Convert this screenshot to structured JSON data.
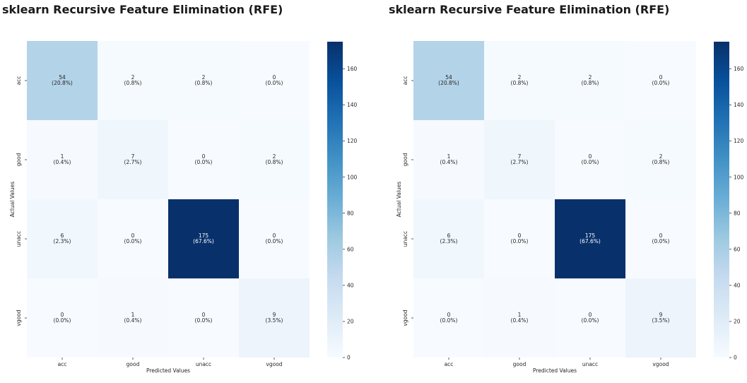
{
  "chart_data": [
    {
      "type": "heatmap",
      "title": "sklearn Recursive Feature Elimination (RFE)",
      "xlabel": "Predicted Values",
      "ylabel": "Actual Values",
      "x_categories": [
        "acc",
        "good",
        "unacc",
        "vgood"
      ],
      "y_categories": [
        "acc",
        "good",
        "unacc",
        "vgood"
      ],
      "values": [
        [
          54,
          2,
          2,
          0
        ],
        [
          1,
          7,
          0,
          2
        ],
        [
          6,
          0,
          175,
          0
        ],
        [
          0,
          1,
          0,
          9
        ]
      ],
      "annotations": [
        [
          "(20.8%)",
          "(0.8%)",
          "(0.8%)",
          "(0.0%)"
        ],
        [
          "(0.4%)",
          "(2.7%)",
          "(0.0%)",
          "(0.8%)"
        ],
        [
          "(2.3%)",
          "(0.0%)",
          "(67.6%)",
          "(0.0%)"
        ],
        [
          "(0.0%)",
          "(0.4%)",
          "(0.0%)",
          "(3.5%)"
        ]
      ],
      "colorbar_ticks": [
        0,
        20,
        40,
        60,
        80,
        100,
        120,
        140,
        160
      ],
      "colorbar_range": [
        0,
        175
      ],
      "colormap": "Blues",
      "grid": false
    },
    {
      "type": "heatmap",
      "title": "sklearn Recursive Feature Elimination (RFE)",
      "xlabel": "Predicted Values",
      "ylabel": "Actual Values",
      "x_categories": [
        "acc",
        "good",
        "unacc",
        "vgood"
      ],
      "y_categories": [
        "acc",
        "good",
        "unacc",
        "vgood"
      ],
      "values": [
        [
          54,
          2,
          2,
          0
        ],
        [
          1,
          7,
          0,
          2
        ],
        [
          6,
          0,
          175,
          0
        ],
        [
          0,
          1,
          0,
          9
        ]
      ],
      "annotations": [
        [
          "(20.8%)",
          "(0.8%)",
          "(0.8%)",
          "(0.0%)"
        ],
        [
          "(0.4%)",
          "(2.7%)",
          "(0.0%)",
          "(0.8%)"
        ],
        [
          "(2.3%)",
          "(0.0%)",
          "(67.6%)",
          "(0.0%)"
        ],
        [
          "(0.0%)",
          "(0.4%)",
          "(0.0%)",
          "(3.5%)"
        ]
      ],
      "colorbar_ticks": [
        0,
        20,
        40,
        60,
        80,
        100,
        120,
        140,
        160
      ],
      "colorbar_range": [
        0,
        175
      ],
      "colormap": "Blues",
      "grid": false
    }
  ]
}
